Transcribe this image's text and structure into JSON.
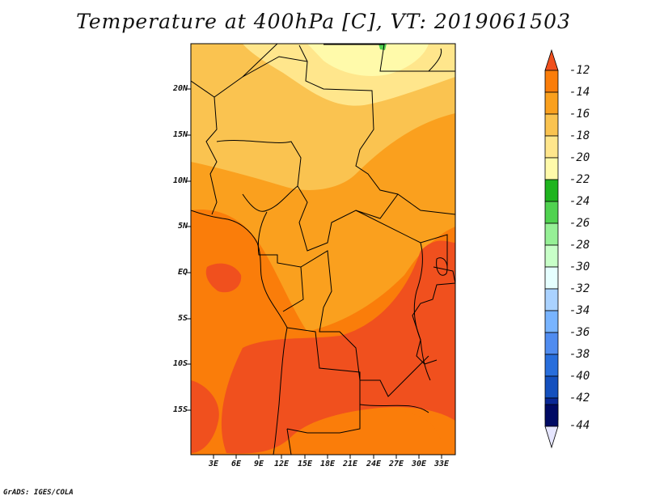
{
  "title": "Temperature at 400hPa [C], VT: 2019061503",
  "credit": "GrADS: IGES/COLA",
  "map": {
    "lat_labels": [
      "20N",
      "15N",
      "10N",
      "5N",
      "EQ",
      "5S",
      "10S",
      "15S"
    ],
    "lon_labels": [
      "3E",
      "6E",
      "9E",
      "12E",
      "15E",
      "18E",
      "21E",
      "24E",
      "27E",
      "30E",
      "33E"
    ]
  },
  "colorbar": {
    "labels": [
      "-12",
      "-14",
      "-16",
      "-18",
      "-20",
      "-22",
      "-24",
      "-26",
      "-28",
      "-30",
      "-32",
      "-34",
      "-36",
      "-38",
      "-40",
      "-42",
      "-44"
    ],
    "colors": [
      "#f0501e",
      "#fa7d0a",
      "#faa01e",
      "#fac350",
      "#ffe68c",
      "#fffaaa",
      "#1eb41e",
      "#50d250",
      "#96f096",
      "#c8ffc8",
      "#e6ffff",
      "#aad2ff",
      "#78b4ff",
      "#508cf0",
      "#286edc",
      "#1450be",
      "#0a2896",
      "#000a64",
      "#e6e6ff"
    ]
  }
}
